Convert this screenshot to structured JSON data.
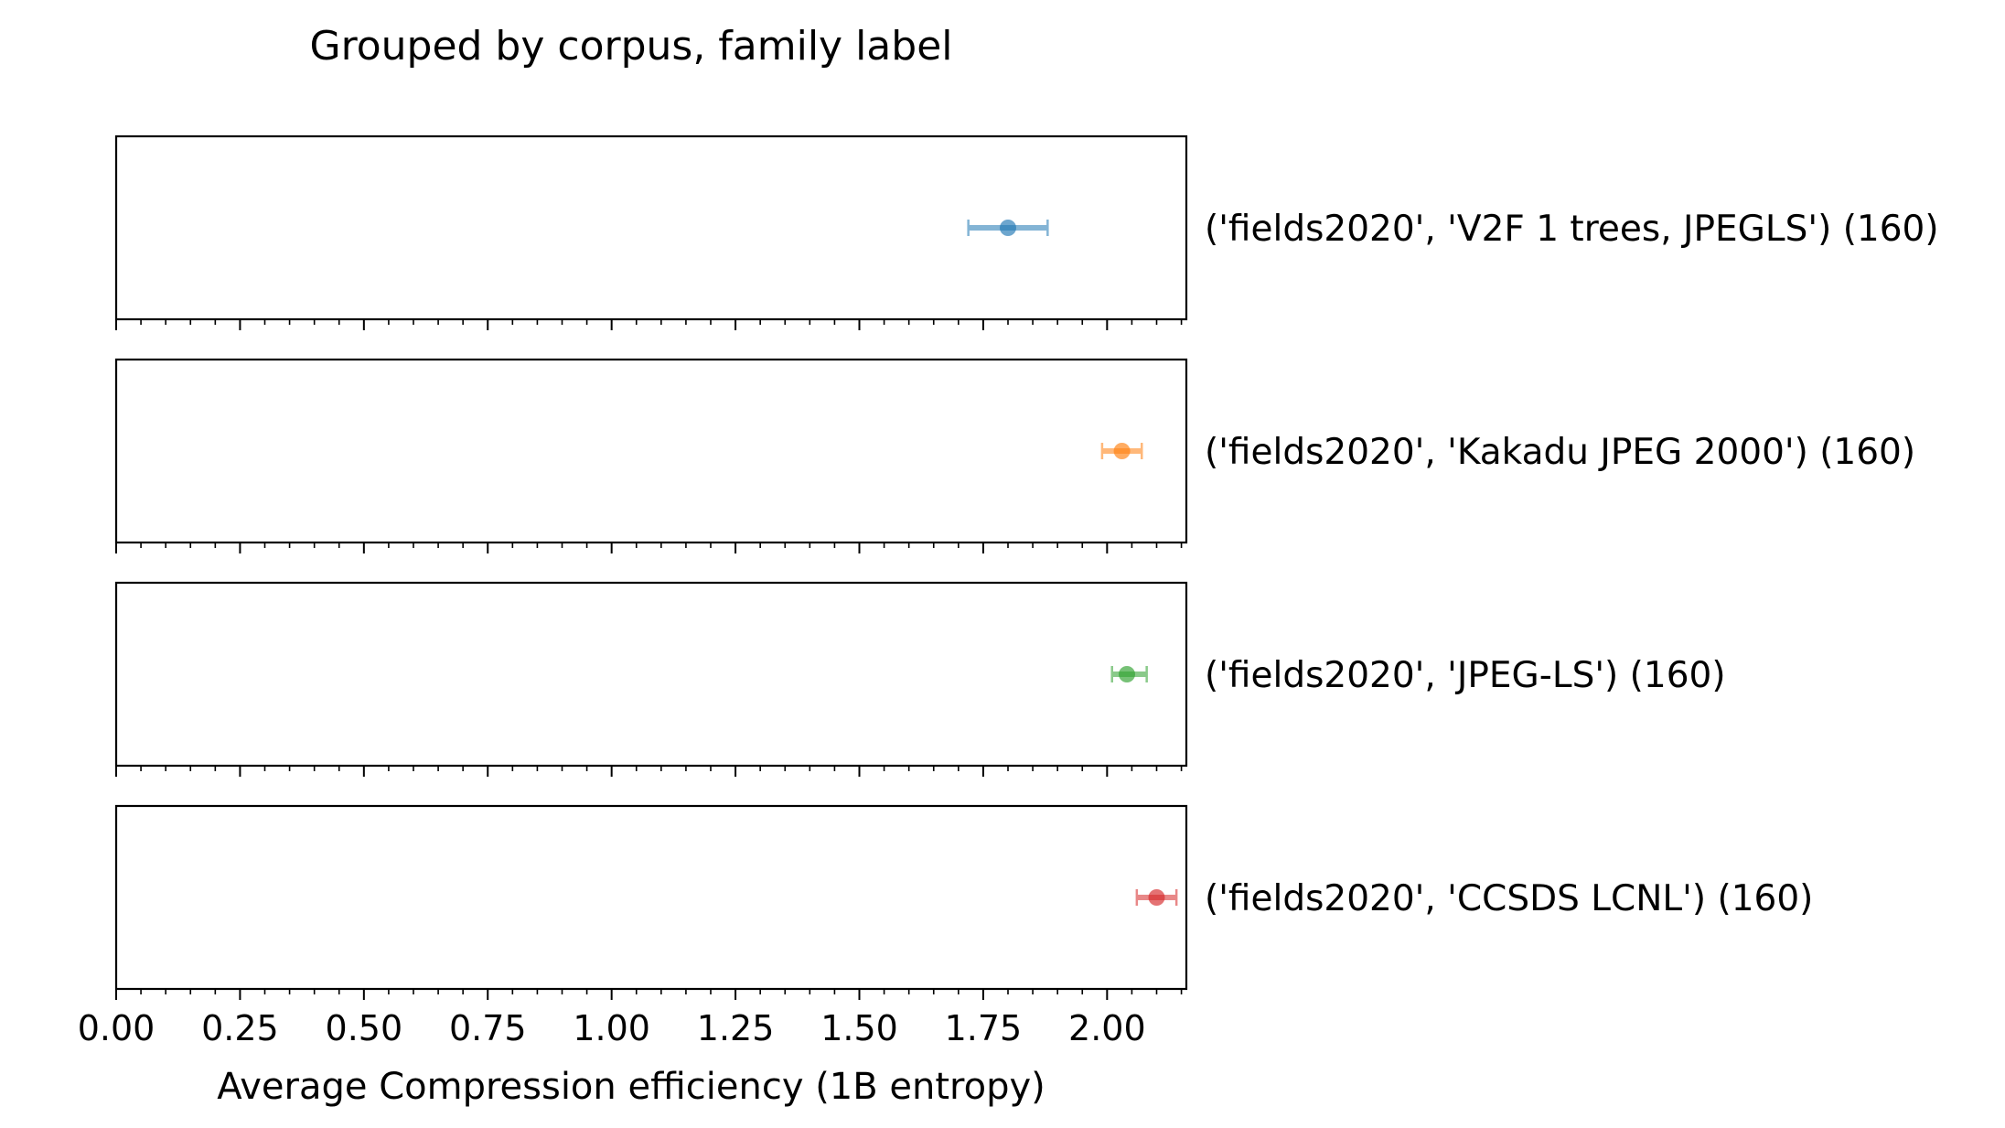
{
  "chart_data": {
    "type": "scatter",
    "title": "Grouped by corpus, family label",
    "xlabel": "Average Compression efficiency (1B entropy)",
    "ylabel": "",
    "xlim": [
      0.0,
      2.16
    ],
    "xticks": [
      "0.00",
      "0.25",
      "0.50",
      "0.75",
      "1.00",
      "1.25",
      "1.50",
      "1.75",
      "2.00"
    ],
    "xtick_values": [
      0.0,
      0.25,
      0.5,
      0.75,
      1.0,
      1.25,
      1.5,
      1.75,
      2.0
    ],
    "minor_tick_step": 0.05,
    "grid": false,
    "legend": "none",
    "series": [
      {
        "label": "('fields2020', 'V2F 1 trees, JPEGLS') (160)",
        "value": 1.8,
        "err_low": 1.72,
        "err_high": 1.88,
        "color": "#1f77b4"
      },
      {
        "label": "('fields2020', 'Kakadu JPEG 2000') (160)",
        "value": 2.03,
        "err_low": 1.99,
        "err_high": 2.07,
        "color": "#ff7f0e"
      },
      {
        "label": "('fields2020', 'JPEG-LS') (160)",
        "value": 2.04,
        "err_low": 2.01,
        "err_high": 2.08,
        "color": "#2ca02c"
      },
      {
        "label": "('fields2020', 'CCSDS LCNL') (160)",
        "value": 2.1,
        "err_low": 2.06,
        "err_high": 2.14,
        "color": "#d62728"
      }
    ]
  }
}
